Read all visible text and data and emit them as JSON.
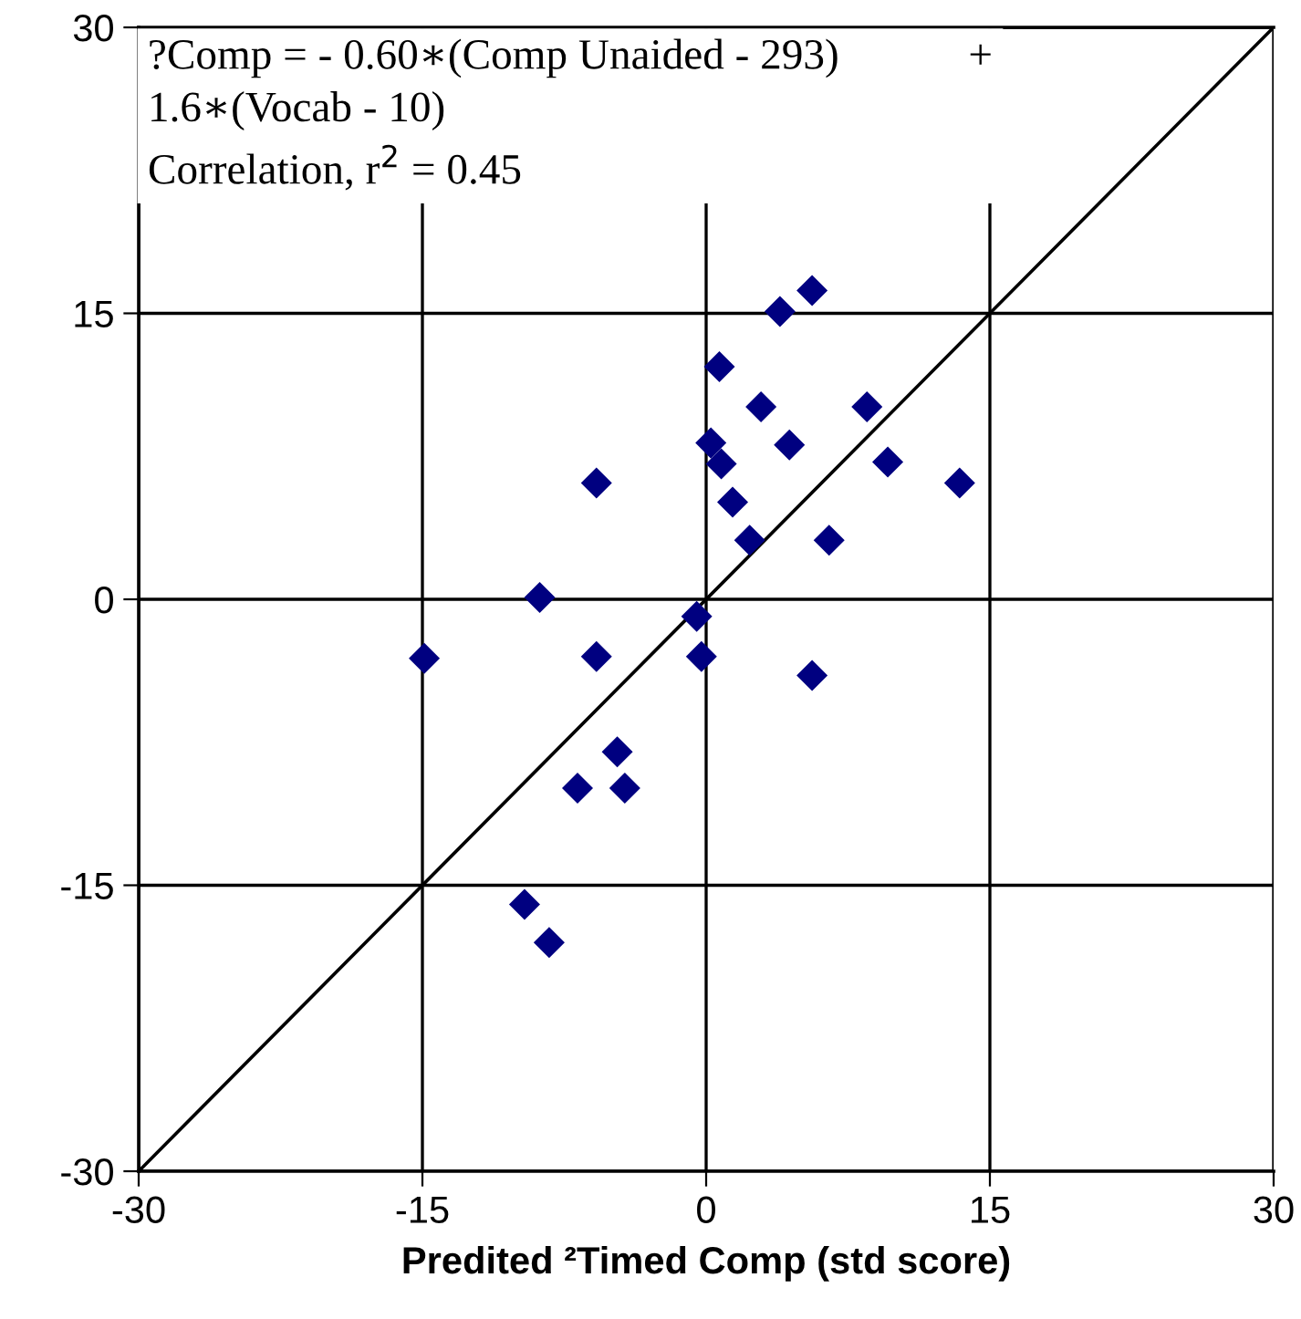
{
  "chart_data": {
    "type": "scatter",
    "xlabel": "Predited ²Timed Comp (std score)",
    "annotations": [
      "?Comp = - 0.60∗(Comp Unaided - 293)            +",
      "1.6∗(Vocab - 10)",
      "Correlation, r$^{2}$ = 0.45"
    ],
    "series": [
      {
        "color": "#000080",
        "marker": "diamond",
        "x": [
          5.6,
          3.9,
          0.7,
          2.9,
          8.5,
          0.25,
          4.4,
          0.8,
          9.6,
          13.4,
          -5.8,
          1.4,
          2.3,
          6.5,
          -8.8,
          -0.5,
          -14.9,
          -5.8,
          -0.25,
          5.6,
          -4.7,
          -6.8,
          -4.3,
          -9.6,
          -8.3
        ],
        "values": [
          16.2,
          15.1,
          12.2,
          10.1,
          10.1,
          8.2,
          8.1,
          7.1,
          7.2,
          6.1,
          6.1,
          5.1,
          3.1,
          3.1,
          0.1,
          -0.9,
          -3.1,
          -3.0,
          -3.0,
          -4.0,
          -8.0,
          -9.9,
          -9.9,
          -16.0,
          -18.0
        ]
      },
      {
        "type": "line",
        "color": "#000000",
        "marker": "none",
        "line_style": "solid",
        "x": [
          -30,
          30
        ],
        "values": [
          -30,
          30
        ]
      }
    ],
    "xlim": [
      -30,
      30
    ],
    "ylim": [
      -30,
      30
    ],
    "xticks": [
      -30,
      -15,
      0,
      15,
      30
    ],
    "yticks": [
      -30,
      -15,
      0,
      15,
      30
    ],
    "grid": true
  }
}
